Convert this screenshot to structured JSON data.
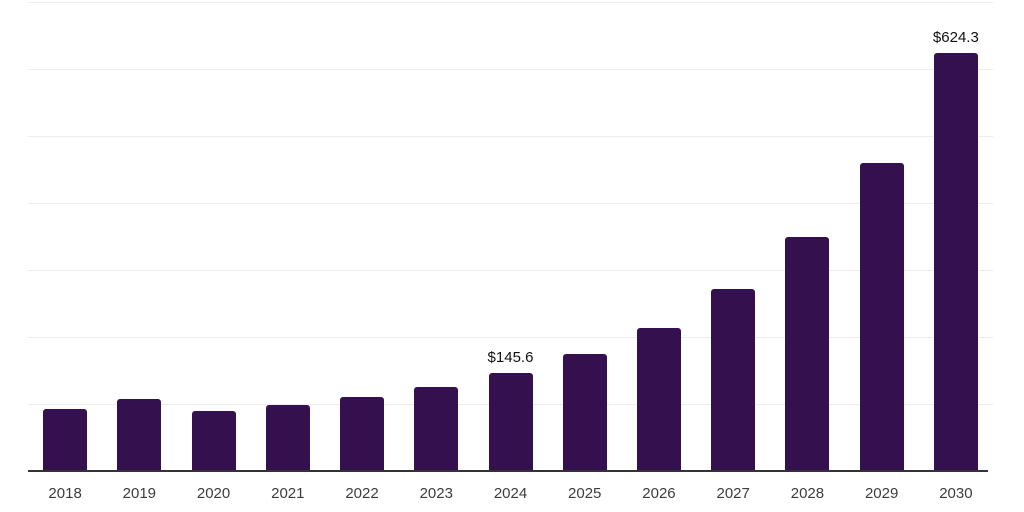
{
  "chart_data": {
    "type": "bar",
    "title": "",
    "xlabel": "",
    "ylabel": "",
    "categories": [
      "2018",
      "2019",
      "2020",
      "2021",
      "2022",
      "2023",
      "2024",
      "2025",
      "2026",
      "2027",
      "2028",
      "2029",
      "2030"
    ],
    "values": [
      93,
      107,
      89,
      98,
      111,
      126,
      145.6,
      175,
      214,
      271,
      350,
      460,
      624.3
    ],
    "value_labels": [
      "",
      "",
      "",
      "",
      "",
      "",
      "$145.6",
      "",
      "",
      "",
      "",
      "",
      "$624.3"
    ],
    "ylim": [
      0,
      700
    ],
    "gridline_step": 100,
    "grid": "horizontal",
    "legend": "none",
    "colors": {
      "bar": "#34114E",
      "axis": "#333333",
      "gridline": "#ededed",
      "tick_label": "#3d3d3d",
      "value_label": "#111111",
      "background": "#ffffff"
    }
  }
}
